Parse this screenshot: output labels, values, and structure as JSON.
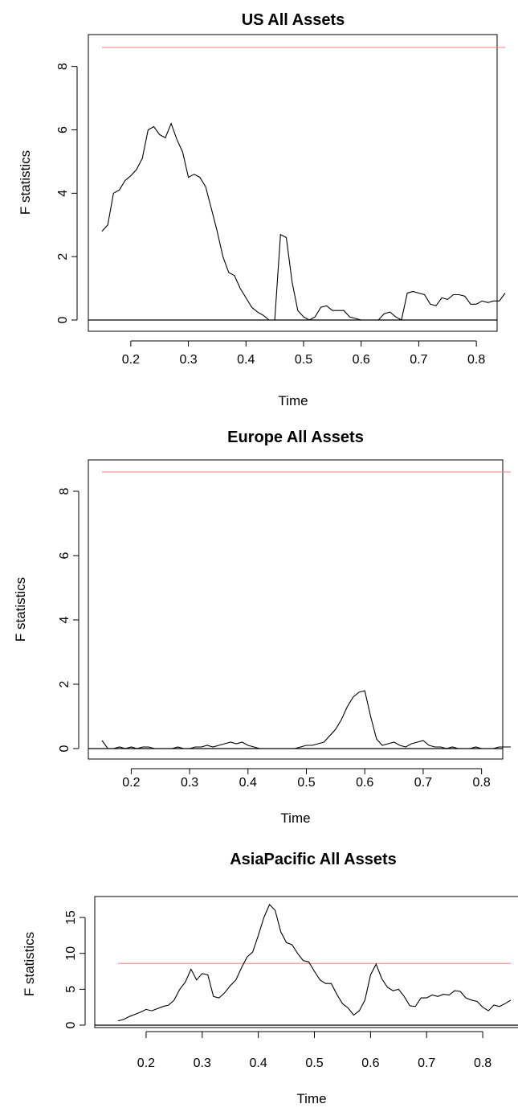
{
  "chart_data": [
    {
      "type": "line",
      "title": "US All Assets",
      "xlabel": "Time",
      "ylabel": "F statistics",
      "xlim": [
        0.15,
        0.85
      ],
      "ylim": [
        0,
        8.6
      ],
      "xticks": [
        0.2,
        0.3,
        0.4,
        0.5,
        0.6,
        0.7,
        0.8
      ],
      "yticks": [
        0,
        2,
        4,
        6,
        8
      ],
      "xtick_labels": [
        "0.2",
        "0.3",
        "0.4",
        "0.5",
        "0.6",
        "0.7",
        "0.8"
      ],
      "ytick_labels": [
        "0",
        "2",
        "4",
        "6",
        "8"
      ],
      "critical_value": 8.6,
      "critical_color": "#f08080",
      "baseline": 0,
      "line_color": "#000000",
      "grid": false,
      "x": [
        0.15,
        0.16,
        0.17,
        0.18,
        0.19,
        0.2,
        0.21,
        0.22,
        0.23,
        0.24,
        0.25,
        0.26,
        0.27,
        0.28,
        0.29,
        0.3,
        0.31,
        0.32,
        0.33,
        0.34,
        0.35,
        0.36,
        0.37,
        0.38,
        0.39,
        0.4,
        0.41,
        0.42,
        0.43,
        0.44,
        0.45,
        0.46,
        0.47,
        0.48,
        0.49,
        0.5,
        0.51,
        0.52,
        0.53,
        0.54,
        0.55,
        0.56,
        0.57,
        0.58,
        0.59,
        0.6,
        0.61,
        0.62,
        0.63,
        0.64,
        0.65,
        0.66,
        0.67,
        0.68,
        0.69,
        0.7,
        0.71,
        0.72,
        0.73,
        0.74,
        0.75,
        0.76,
        0.77,
        0.78,
        0.79,
        0.8,
        0.81,
        0.82,
        0.83,
        0.84,
        0.85
      ],
      "y": [
        2.8,
        3.0,
        4.0,
        4.1,
        4.4,
        4.55,
        4.75,
        5.1,
        6.0,
        6.1,
        5.85,
        5.75,
        6.2,
        5.7,
        5.3,
        4.5,
        4.6,
        4.5,
        4.2,
        3.5,
        2.8,
        2.0,
        1.5,
        1.4,
        1.0,
        0.7,
        0.4,
        0.25,
        0.15,
        0.0,
        0.0,
        2.7,
        2.6,
        1.2,
        0.3,
        0.1,
        0.0,
        0.1,
        0.4,
        0.45,
        0.3,
        0.3,
        0.3,
        0.1,
        0.05,
        0.0,
        0.0,
        0.0,
        0.0,
        0.2,
        0.25,
        0.1,
        0.0,
        0.85,
        0.9,
        0.85,
        0.8,
        0.5,
        0.45,
        0.7,
        0.65,
        0.8,
        0.8,
        0.75,
        0.5,
        0.5,
        0.6,
        0.55,
        0.6,
        0.6,
        0.85
      ]
    },
    {
      "type": "line",
      "title": "Europe All Assets",
      "xlabel": "Time",
      "ylabel": "F statistics",
      "xlim": [
        0.15,
        0.85
      ],
      "ylim": [
        0,
        8.6
      ],
      "xticks": [
        0.2,
        0.3,
        0.4,
        0.5,
        0.6,
        0.7,
        0.8
      ],
      "yticks": [
        0,
        2,
        4,
        6,
        8
      ],
      "xtick_labels": [
        "0.2",
        "0.3",
        "0.4",
        "0.5",
        "0.6",
        "0.7",
        "0.8"
      ],
      "ytick_labels": [
        "0",
        "2",
        "4",
        "6",
        "8"
      ],
      "critical_value": 8.6,
      "critical_color": "#f08080",
      "baseline": 0,
      "line_color": "#000000",
      "grid": false,
      "x": [
        0.15,
        0.16,
        0.17,
        0.18,
        0.19,
        0.2,
        0.21,
        0.22,
        0.23,
        0.24,
        0.25,
        0.26,
        0.27,
        0.28,
        0.29,
        0.3,
        0.31,
        0.32,
        0.33,
        0.34,
        0.35,
        0.36,
        0.37,
        0.38,
        0.39,
        0.4,
        0.41,
        0.42,
        0.43,
        0.44,
        0.45,
        0.46,
        0.47,
        0.48,
        0.49,
        0.5,
        0.51,
        0.52,
        0.53,
        0.54,
        0.55,
        0.56,
        0.57,
        0.58,
        0.59,
        0.6,
        0.61,
        0.62,
        0.63,
        0.64,
        0.65,
        0.66,
        0.67,
        0.68,
        0.69,
        0.7,
        0.71,
        0.72,
        0.73,
        0.74,
        0.75,
        0.76,
        0.77,
        0.78,
        0.79,
        0.8,
        0.81,
        0.82,
        0.83,
        0.84,
        0.85
      ],
      "y": [
        0.25,
        0.0,
        0.0,
        0.05,
        0.0,
        0.05,
        0.0,
        0.05,
        0.05,
        0.0,
        0.0,
        0.0,
        0.0,
        0.05,
        0.0,
        0.0,
        0.05,
        0.05,
        0.1,
        0.05,
        0.1,
        0.15,
        0.2,
        0.15,
        0.2,
        0.1,
        0.05,
        0.0,
        0.0,
        0.0,
        0.0,
        0.0,
        0.0,
        0.0,
        0.05,
        0.1,
        0.1,
        0.15,
        0.2,
        0.4,
        0.6,
        0.9,
        1.3,
        1.6,
        1.75,
        1.8,
        1.0,
        0.3,
        0.1,
        0.15,
        0.2,
        0.1,
        0.05,
        0.15,
        0.2,
        0.25,
        0.1,
        0.05,
        0.05,
        0.0,
        0.05,
        0.0,
        0.0,
        0.0,
        0.05,
        0.0,
        0.0,
        0.0,
        0.05,
        0.05,
        0.05
      ]
    },
    {
      "type": "line",
      "title": "AsiaPacific All Assets",
      "xlabel": "Time",
      "ylabel": "F statistics",
      "xlim": [
        0.15,
        0.85
      ],
      "ylim": [
        0,
        16.8
      ],
      "xticks": [
        0.2,
        0.3,
        0.4,
        0.5,
        0.6,
        0.7,
        0.8
      ],
      "yticks": [
        0,
        5,
        10,
        15
      ],
      "xtick_labels": [
        "0.2",
        "0.3",
        "0.4",
        "0.5",
        "0.6",
        "0.7",
        "0.8"
      ],
      "ytick_labels": [
        "0",
        "5",
        "10",
        "15"
      ],
      "critical_value": 8.6,
      "critical_color": "#f08080",
      "baseline": 0,
      "line_color": "#000000",
      "grid": false,
      "x": [
        0.15,
        0.16,
        0.17,
        0.18,
        0.19,
        0.2,
        0.21,
        0.22,
        0.23,
        0.24,
        0.25,
        0.26,
        0.27,
        0.28,
        0.29,
        0.3,
        0.31,
        0.32,
        0.33,
        0.34,
        0.35,
        0.36,
        0.37,
        0.38,
        0.39,
        0.4,
        0.41,
        0.42,
        0.43,
        0.44,
        0.45,
        0.46,
        0.47,
        0.48,
        0.49,
        0.5,
        0.51,
        0.52,
        0.53,
        0.54,
        0.55,
        0.56,
        0.57,
        0.58,
        0.59,
        0.6,
        0.61,
        0.62,
        0.63,
        0.64,
        0.65,
        0.66,
        0.67,
        0.68,
        0.69,
        0.7,
        0.71,
        0.72,
        0.73,
        0.74,
        0.75,
        0.76,
        0.77,
        0.78,
        0.79,
        0.8,
        0.81,
        0.82,
        0.83,
        0.84,
        0.85
      ],
      "y": [
        0.6,
        0.8,
        1.2,
        1.5,
        1.8,
        2.2,
        2.0,
        2.3,
        2.6,
        2.8,
        3.5,
        5.0,
        6.0,
        7.8,
        6.3,
        7.2,
        7.0,
        4.0,
        3.8,
        4.5,
        5.5,
        6.3,
        8.0,
        9.5,
        10.2,
        12.5,
        15.0,
        16.8,
        16.0,
        13.0,
        11.5,
        11.2,
        10.0,
        9.0,
        8.8,
        7.5,
        6.3,
        5.8,
        5.8,
        4.3,
        3.0,
        2.4,
        1.4,
        2.0,
        3.5,
        7.0,
        8.5,
        6.5,
        5.3,
        4.8,
        5.0,
        4.0,
        2.7,
        2.6,
        3.8,
        3.8,
        4.2,
        4.0,
        4.3,
        4.2,
        4.8,
        4.7,
        3.8,
        3.5,
        3.3,
        2.5,
        2.0,
        2.8,
        2.6,
        3.0,
        3.5
      ]
    }
  ]
}
